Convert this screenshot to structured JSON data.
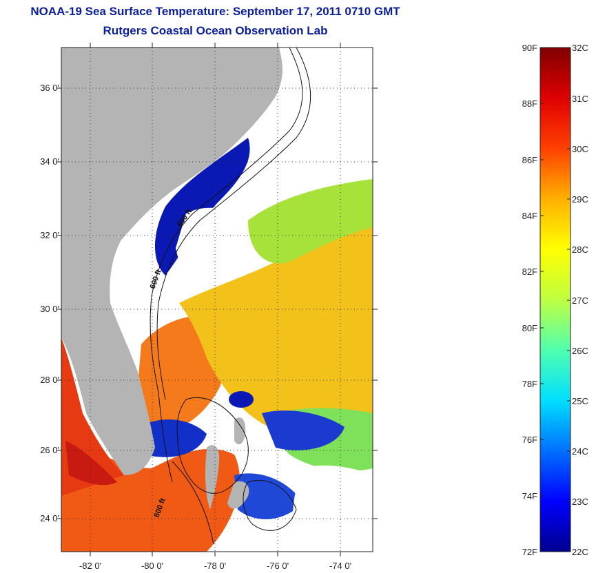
{
  "title": {
    "line1": "NOAA-19 Sea Surface Temperature:  September 17, 2011 0710 GMT",
    "line2": "Rutgers Coastal Ocean Observation Lab"
  },
  "map": {
    "latitude_labels": [
      "36 0'",
      "34 0'",
      "32 0'",
      "30 0'",
      "28 0'",
      "26 0'",
      "24 0'"
    ],
    "longitude_labels": [
      "-82 0'",
      "-80 0'",
      "-78 0'",
      "-76 0'",
      "-74 0'"
    ],
    "contour_labels": [
      "600 ft",
      "600 ft",
      "600 ft"
    ],
    "land_color": "#b4b4b4",
    "cloud_color": "#ffffff"
  },
  "colorbar": {
    "fahrenheit_labels": [
      "90F",
      "88F",
      "86F",
      "84F",
      "82F",
      "80F",
      "78F",
      "76F",
      "74F",
      "72F"
    ],
    "celsius_labels": [
      "32C",
      "31C",
      "30C",
      "29C",
      "28C",
      "27C",
      "26C",
      "25C",
      "24C",
      "23C",
      "22C"
    ],
    "colors": [
      "#00008f",
      "#0000ff",
      "#0070ff",
      "#00dfff",
      "#50ffaf",
      "#bfff40",
      "#ffff00",
      "#ffb000",
      "#ff4000",
      "#df0000",
      "#800000"
    ]
  }
}
